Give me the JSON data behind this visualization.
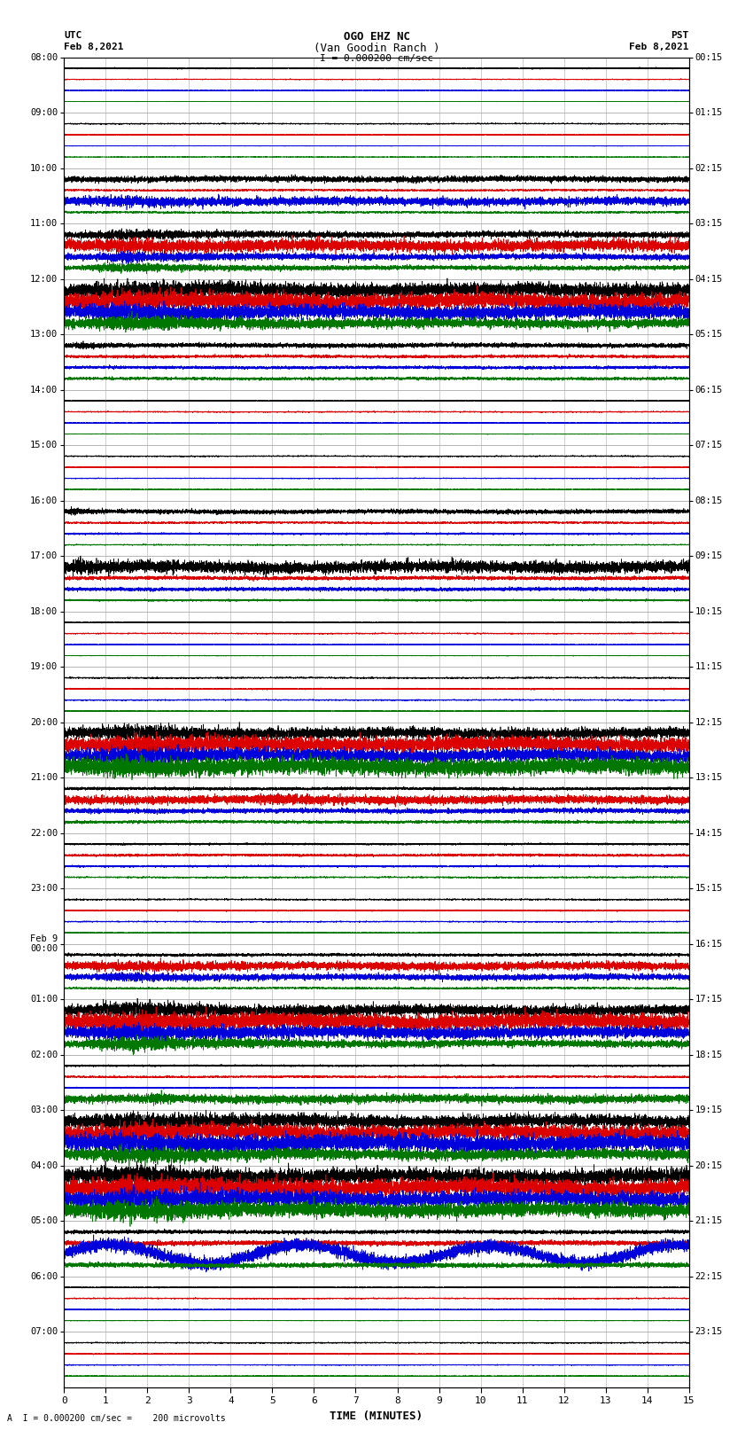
{
  "title_line1": "OGO EHZ NC",
  "title_line2": "(Van Goodin Ranch )",
  "scale_text": "I = 0.000200 cm/sec",
  "footer_text": "A  I = 0.000200 cm/sec =    200 microvolts",
  "xlabel": "TIME (MINUTES)",
  "fig_width": 8.5,
  "fig_height": 16.13,
  "dpi": 100,
  "background": "#ffffff",
  "grid_color": "#888888",
  "left_labels_utc": [
    "08:00",
    "09:00",
    "10:00",
    "11:00",
    "12:00",
    "13:00",
    "14:00",
    "15:00",
    "16:00",
    "17:00",
    "18:00",
    "19:00",
    "20:00",
    "21:00",
    "22:00",
    "23:00",
    "Feb 9\n00:00",
    "01:00",
    "02:00",
    "03:00",
    "04:00",
    "05:00",
    "06:00",
    "07:00"
  ],
  "right_labels_pst": [
    "00:15",
    "01:15",
    "02:15",
    "03:15",
    "04:15",
    "05:15",
    "06:15",
    "07:15",
    "08:15",
    "09:15",
    "10:15",
    "11:15",
    "12:15",
    "13:15",
    "14:15",
    "15:15",
    "16:15",
    "17:15",
    "18:15",
    "19:15",
    "20:15",
    "21:15",
    "22:15",
    "23:15"
  ],
  "colors": {
    "black": "#000000",
    "red": "#dd0000",
    "blue": "#0000dd",
    "green": "#007700"
  },
  "num_rows": 24,
  "row_configs": [
    {
      "blk": 0.06,
      "red": 0.04,
      "blu": 0.03,
      "grn": 0.02,
      "ev_ch": [],
      "ev_s": 0,
      "ev_d": 0,
      "ev_a": 0.0
    },
    {
      "blk": 0.05,
      "red": 0.04,
      "blu": 0.03,
      "grn": 0.02,
      "ev_ch": [],
      "ev_s": 0,
      "ev_d": 0,
      "ev_a": 0.0
    },
    {
      "blk": 0.25,
      "red": 0.08,
      "blu": 0.35,
      "grn": 0.08,
      "ev_ch": [
        2
      ],
      "ev_s": 0,
      "ev_d": 15,
      "ev_a": 0.35
    },
    {
      "blk": 0.25,
      "red": 0.5,
      "blu": 0.25,
      "grn": 0.18,
      "ev_ch": [
        0,
        1,
        2,
        3
      ],
      "ev_s": 0,
      "ev_d": 15,
      "ev_a": 0.4
    },
    {
      "blk": 0.6,
      "red": 0.7,
      "blu": 0.6,
      "grn": 0.4,
      "ev_ch": [
        0,
        1,
        2,
        3
      ],
      "ev_s": 0,
      "ev_d": 15,
      "ev_a": 0.6
    },
    {
      "blk": 0.18,
      "red": 0.12,
      "blu": 0.12,
      "grn": 0.12,
      "ev_ch": [
        0
      ],
      "ev_s": 0,
      "ev_d": 4,
      "ev_a": 0.25
    },
    {
      "blk": 0.05,
      "red": 0.05,
      "blu": 0.04,
      "grn": 0.03,
      "ev_ch": [],
      "ev_s": 0,
      "ev_d": 0,
      "ev_a": 0.0
    },
    {
      "blk": 0.05,
      "red": 0.05,
      "blu": 0.04,
      "grn": 0.03,
      "ev_ch": [],
      "ev_s": 0,
      "ev_d": 0,
      "ev_a": 0.0
    },
    {
      "blk": 0.18,
      "red": 0.08,
      "blu": 0.08,
      "grn": 0.05,
      "ev_ch": [
        0
      ],
      "ev_s": 0,
      "ev_d": 2,
      "ev_a": 0.3
    },
    {
      "blk": 0.5,
      "red": 0.15,
      "blu": 0.15,
      "grn": 0.08,
      "ev_ch": [
        0
      ],
      "ev_s": 0,
      "ev_d": 4,
      "ev_a": 0.5
    },
    {
      "blk": 0.05,
      "red": 0.05,
      "blu": 0.04,
      "grn": 0.03,
      "ev_ch": [],
      "ev_s": 0,
      "ev_d": 0,
      "ev_a": 0.0
    },
    {
      "blk": 0.06,
      "red": 0.06,
      "blu": 0.05,
      "grn": 0.04,
      "ev_ch": [],
      "ev_s": 0,
      "ev_d": 0,
      "ev_a": 0.0
    },
    {
      "blk": 0.45,
      "red": 0.65,
      "blu": 0.55,
      "grn": 0.7,
      "ev_ch": [
        0,
        1,
        2,
        3
      ],
      "ev_s": 0,
      "ev_d": 15,
      "ev_a": 0.6
    },
    {
      "blk": 0.12,
      "red": 0.35,
      "blu": 0.2,
      "grn": 0.12,
      "ev_ch": [
        1
      ],
      "ev_s": 4,
      "ev_d": 11,
      "ev_a": 0.3
    },
    {
      "blk": 0.08,
      "red": 0.1,
      "blu": 0.08,
      "grn": 0.06,
      "ev_ch": [],
      "ev_s": 0,
      "ev_d": 0,
      "ev_a": 0.0
    },
    {
      "blk": 0.06,
      "red": 0.06,
      "blu": 0.05,
      "grn": 0.04,
      "ev_ch": [],
      "ev_s": 0,
      "ev_d": 0,
      "ev_a": 0.0
    },
    {
      "blk": 0.12,
      "red": 0.35,
      "blu": 0.25,
      "grn": 0.08,
      "ev_ch": [
        1,
        2
      ],
      "ev_s": 0,
      "ev_d": 15,
      "ev_a": 0.3
    },
    {
      "blk": 0.45,
      "red": 0.7,
      "blu": 0.5,
      "grn": 0.3,
      "ev_ch": [
        0,
        1,
        2,
        3
      ],
      "ev_s": 0,
      "ev_d": 15,
      "ev_a": 0.6
    },
    {
      "blk": 0.08,
      "red": 0.08,
      "blu": 0.06,
      "grn": 0.35,
      "ev_ch": [
        3
      ],
      "ev_s": 2,
      "ev_d": 2,
      "ev_a": 0.5
    },
    {
      "blk": 0.55,
      "red": 0.65,
      "blu": 0.75,
      "grn": 0.45,
      "ev_ch": [
        0,
        1,
        2,
        3
      ],
      "ev_s": 0,
      "ev_d": 15,
      "ev_a": 0.6
    },
    {
      "blk": 0.65,
      "red": 0.75,
      "blu": 0.65,
      "grn": 0.6,
      "ev_ch": [
        0,
        1,
        2,
        3
      ],
      "ev_s": 0,
      "ev_d": 15,
      "ev_a": 0.7
    },
    {
      "blk": 0.15,
      "red": 0.2,
      "blu": 0.8,
      "grn": 0.2,
      "ev_ch": [
        2
      ],
      "ev_s": 0,
      "ev_d": 15,
      "ev_a": 0.0
    },
    {
      "blk": 0.05,
      "red": 0.05,
      "blu": 0.04,
      "grn": 0.03,
      "ev_ch": [],
      "ev_s": 0,
      "ev_d": 0,
      "ev_a": 0.0
    },
    {
      "blk": 0.05,
      "red": 0.05,
      "blu": 0.04,
      "grn": 0.03,
      "ev_ch": [],
      "ev_s": 0,
      "ev_d": 0,
      "ev_a": 0.0
    }
  ],
  "x_ticks": [
    0,
    1,
    2,
    3,
    4,
    5,
    6,
    7,
    8,
    9,
    10,
    11,
    12,
    13,
    14,
    15
  ]
}
